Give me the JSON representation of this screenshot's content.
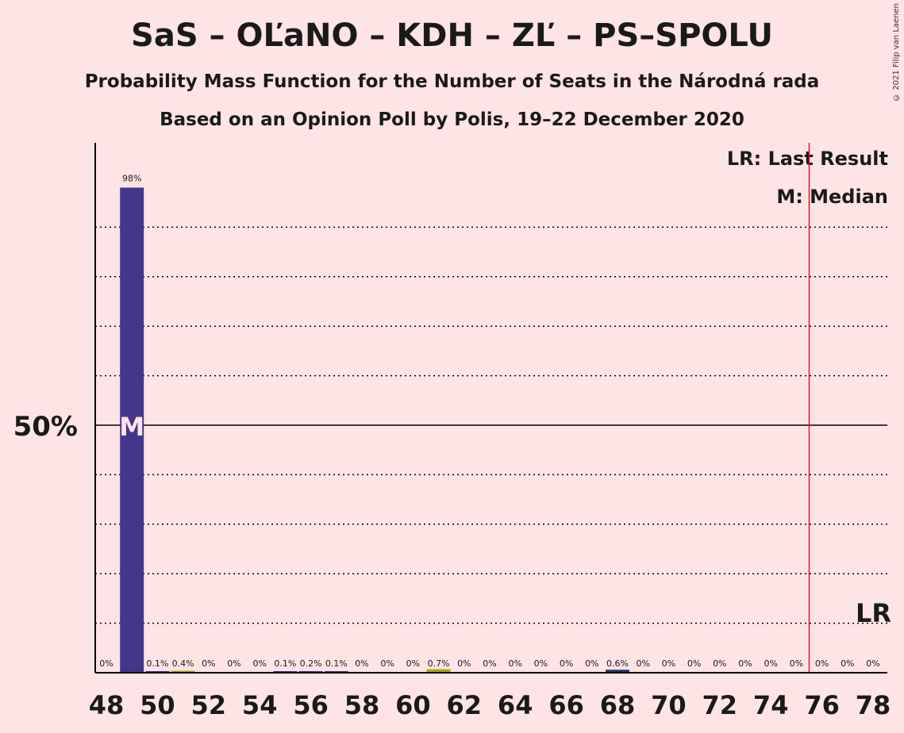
{
  "header": {
    "title": "SaS – OĽaNO – KDH – ZĽ – PS–SPOLU",
    "subtitle": "Probability Mass Function for the Number of Seats in the Národná rada",
    "subtitle2": "Based on an Opinion Poll by Polis, 19–22 December 2020",
    "copyright": "© 2021 Filip van Laenen"
  },
  "legend": {
    "last_result": "LR: Last Result",
    "median": "M: Median"
  },
  "colors": {
    "background": "#FFE4E6",
    "bar_main": "#44358D",
    "bar_olive": "#A9A617",
    "bar_navy": "#1E3A6B",
    "last_result_line": "#E0142A"
  },
  "chart_data": {
    "type": "bar",
    "ylabel_tick": "50%",
    "ylim": [
      0,
      107
    ],
    "median_seat": 49,
    "median_marker": "M",
    "last_result_seat": 75.5,
    "last_result_marker": "LR",
    "x_tick_labels": [
      "48",
      "50",
      "52",
      "54",
      "56",
      "58",
      "60",
      "62",
      "64",
      "66",
      "68",
      "70",
      "72",
      "74",
      "76",
      "78"
    ],
    "seats": [
      48,
      49,
      50,
      51,
      52,
      53,
      54,
      55,
      56,
      57,
      58,
      59,
      60,
      61,
      62,
      63,
      64,
      65,
      66,
      67,
      68,
      69,
      70,
      71,
      72,
      73,
      74,
      75,
      76,
      77,
      78
    ],
    "values": [
      0,
      98,
      0.1,
      0.4,
      0,
      0,
      0,
      0.1,
      0.2,
      0.1,
      0,
      0,
      0,
      0.7,
      0,
      0,
      0,
      0,
      0,
      0,
      0.6,
      0,
      0,
      0,
      0,
      0,
      0,
      0,
      0,
      0,
      0
    ],
    "labels": [
      "0%",
      "98%",
      "0.1%",
      "0.4%",
      "0%",
      "0%",
      "0%",
      "0.1%",
      "0.2%",
      "0.1%",
      "0%",
      "0%",
      "0%",
      "0.7%",
      "0%",
      "0%",
      "0%",
      "0%",
      "0%",
      "0%",
      "0.6%",
      "0%",
      "0%",
      "0%",
      "0%",
      "0%",
      "0%",
      "0%",
      "0%",
      "0%",
      "0%"
    ],
    "bar_colors": [
      "main",
      "main",
      "main",
      "olive",
      "main",
      "main",
      "main",
      "main",
      "main",
      "main",
      "main",
      "main",
      "main",
      "olive",
      "main",
      "main",
      "main",
      "main",
      "main",
      "main",
      "navy",
      "main",
      "main",
      "main",
      "main",
      "main",
      "main",
      "main",
      "main",
      "main",
      "main"
    ],
    "gridlines": [
      10,
      20,
      30,
      40,
      60,
      70,
      80,
      90
    ],
    "reference_line": 50
  }
}
